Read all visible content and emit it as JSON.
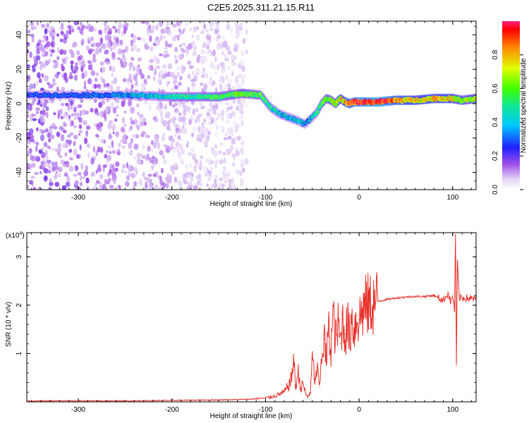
{
  "title": "C2E5.2025.311.21.15.R11",
  "chart_data": [
    {
      "type": "heatmap",
      "xlabel": "Height of straight line (km)",
      "ylabel": "Frequency (Hz)",
      "xlim": [
        -355,
        125
      ],
      "ylim": [
        -50,
        48
      ],
      "x_ticks": [
        -300,
        -200,
        -100,
        0,
        100
      ],
      "y_ticks": [
        -40,
        -20,
        0,
        20,
        40
      ],
      "colorbar": {
        "label": "Normalized spectral amplitude",
        "ticks": [
          0.0,
          0.2,
          0.4,
          0.6,
          0.8
        ],
        "tick_labels": [
          "0.0",
          "0.2",
          "0.4",
          "0.6",
          "0.8"
        ],
        "range": [
          0,
          1
        ]
      },
      "ridge": {
        "x": [
          -355,
          -300,
          -250,
          -200,
          -150,
          -125,
          -105,
          -95,
          -85,
          -75,
          -65,
          -58,
          -50,
          -45,
          -40,
          -35,
          -30,
          -25,
          -20,
          -15,
          -10,
          -5,
          0,
          20,
          40,
          60,
          80,
          100,
          110,
          125
        ],
        "frequency": [
          5,
          5,
          5,
          4,
          4,
          6,
          5,
          -2,
          -6,
          -8,
          -10,
          -12,
          -8,
          -5,
          0,
          3,
          2,
          0,
          3,
          1,
          0,
          1,
          1,
          1,
          2,
          2,
          3,
          3,
          2,
          3
        ],
        "amplitude": [
          0.25,
          0.25,
          0.3,
          0.4,
          0.5,
          0.55,
          0.5,
          0.4,
          0.35,
          0.35,
          0.35,
          0.3,
          0.35,
          0.4,
          0.5,
          0.55,
          0.55,
          0.6,
          0.7,
          0.75,
          0.8,
          0.85,
          0.9,
          0.95,
          0.8,
          0.7,
          0.75,
          0.7,
          0.6,
          0.65
        ]
      },
      "noise_extent_x": [
        -355,
        -120
      ]
    },
    {
      "type": "line",
      "xlabel": "Height of straight line (km)",
      "ylabel": "SNR (10 * v/v)",
      "y_multiplier_label": "(x10",
      "y_multiplier_exp": "4",
      "xlim": [
        -355,
        125
      ],
      "ylim": [
        0,
        3.5
      ],
      "x_ticks": [
        -300,
        -200,
        -100,
        0,
        100
      ],
      "y_ticks": [
        1,
        2,
        3
      ],
      "series": [
        {
          "name": "SNR",
          "color": "#e8302a",
          "x": [
            -355,
            -300,
            -250,
            -200,
            -150,
            -120,
            -100,
            -90,
            -80,
            -75,
            -72,
            -70,
            -68,
            -65,
            -62,
            -60,
            -57,
            -55,
            -52,
            -50,
            -47,
            -45,
            -42,
            -40,
            -37,
            -35,
            -33,
            -30,
            -28,
            -25,
            -22,
            -20,
            -18,
            -15,
            -12,
            -10,
            -8,
            -5,
            -2,
            0,
            5,
            10,
            20,
            30,
            40,
            50,
            60,
            70,
            80,
            85,
            90,
            95,
            98,
            100,
            102,
            103,
            104,
            105,
            107,
            110,
            115,
            120,
            125
          ],
          "y": [
            0.02,
            0.02,
            0.02,
            0.03,
            0.04,
            0.05,
            0.08,
            0.12,
            0.2,
            0.35,
            0.5,
            0.95,
            0.3,
            0.6,
            0.25,
            0.4,
            0.15,
            0.1,
            0.2,
            0.9,
            0.4,
            0.7,
            0.3,
            1.0,
            1.3,
            0.8,
            1.5,
            1.1,
            1.8,
            1.3,
            1.6,
            1.2,
            1.7,
            1.4,
            1.6,
            1.3,
            1.75,
            1.5,
            1.8,
            1.7,
            1.95,
            2.0,
            2.08,
            2.12,
            2.15,
            2.17,
            2.18,
            2.18,
            2.2,
            2.15,
            2.1,
            2.25,
            2.05,
            2.2,
            1.9,
            3.45,
            0.75,
            2.9,
            2.15,
            2.15,
            2.15,
            2.13,
            2.13
          ]
        }
      ]
    }
  ]
}
